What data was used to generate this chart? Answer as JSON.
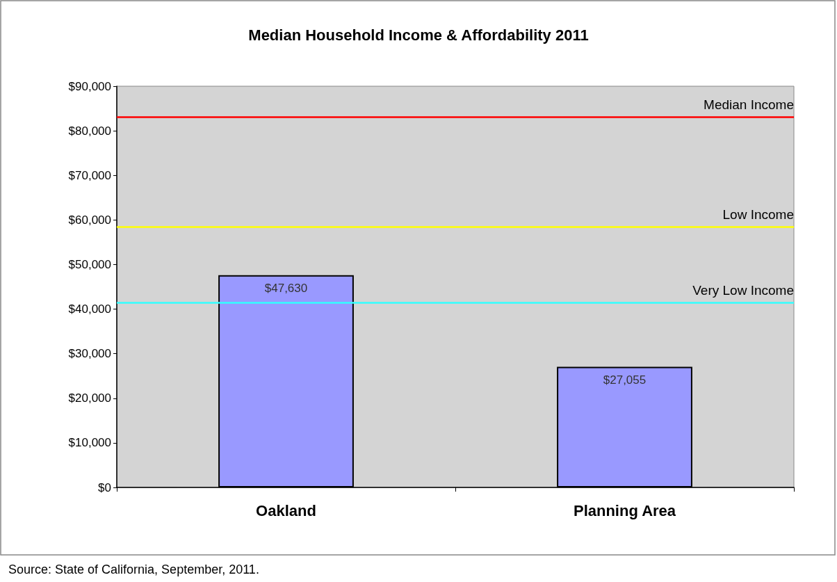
{
  "chart_data": {
    "type": "bar",
    "title": "Median Household Income & Affordability 2011",
    "categories": [
      "Oakland",
      "Planning Area"
    ],
    "values": [
      47630,
      27055
    ],
    "color": "#9999ff",
    "value_labels": [
      "$47,630",
      "$27,055"
    ],
    "ylim": [
      0,
      90000
    ],
    "yticks": [
      {
        "value": 0,
        "label": "$0"
      },
      {
        "value": 10000,
        "label": "$10,000"
      },
      {
        "value": 20000,
        "label": "$20,000"
      },
      {
        "value": 30000,
        "label": "$30,000"
      },
      {
        "value": 40000,
        "label": "$40,000"
      },
      {
        "value": 50000,
        "label": "$50,000"
      },
      {
        "value": 60000,
        "label": "$60,000"
      },
      {
        "value": 70000,
        "label": "$70,000"
      },
      {
        "value": 80000,
        "label": "$80,000"
      },
      {
        "value": 90000,
        "label": "$90,000"
      }
    ],
    "ref_lines": [
      {
        "axis": "y",
        "value": 83100,
        "label": "Median Income",
        "color": "#ff0000"
      },
      {
        "axis": "y",
        "value": 58500,
        "label": "Low Income",
        "color": "#ffff00"
      },
      {
        "axis": "y",
        "value": 41500,
        "label": "Very Low Income",
        "color": "#33ffff"
      }
    ],
    "annotations": [
      "Source: State of California, September, 2011."
    ],
    "grid": false
  }
}
